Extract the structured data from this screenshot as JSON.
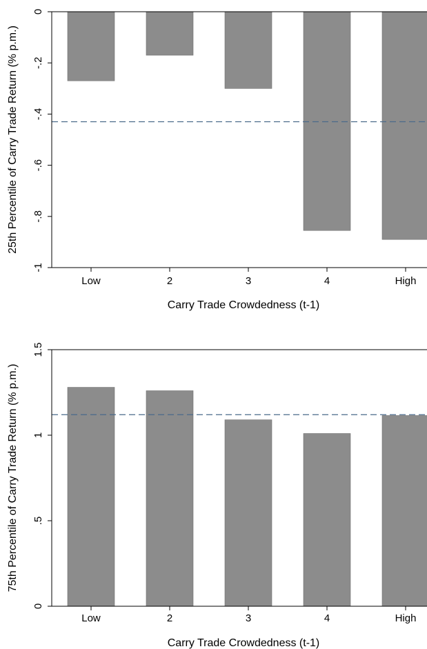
{
  "chart_data": [
    {
      "type": "bar",
      "categories": [
        "Low",
        "2",
        "3",
        "4",
        "High"
      ],
      "values": [
        -0.27,
        -0.17,
        -0.3,
        -0.855,
        -0.89
      ],
      "reference_line": -0.43,
      "xlabel": "Carry Trade Crowdedness (t-1)",
      "ylabel": "25th Percentile of Carry Trade Return (% p.m.)",
      "ylim": [
        -1,
        0
      ],
      "yticks": [
        0,
        -0.2,
        -0.4,
        -0.6,
        -0.8,
        -1
      ],
      "ytick_labels": [
        "0",
        "-.2",
        "-.4",
        "-.6",
        "-.8",
        "-1"
      ],
      "grid": false,
      "bar_color": "#8c8c8c",
      "reference_line_color": "#4a6a8a"
    },
    {
      "type": "bar",
      "categories": [
        "Low",
        "2",
        "3",
        "4",
        "High"
      ],
      "values": [
        1.28,
        1.26,
        1.09,
        1.01,
        1.115
      ],
      "reference_line": 1.12,
      "xlabel": "Carry Trade Crowdedness (t-1)",
      "ylabel": "75th Percentile of Carry Trade Return (% p.m.)",
      "ylim": [
        0,
        1.5
      ],
      "yticks": [
        0,
        0.5,
        1,
        1.5
      ],
      "ytick_labels": [
        "0",
        ".5",
        "1",
        "1.5"
      ],
      "grid": false,
      "bar_color": "#8c8c8c",
      "reference_line_color": "#4a6a8a"
    }
  ]
}
